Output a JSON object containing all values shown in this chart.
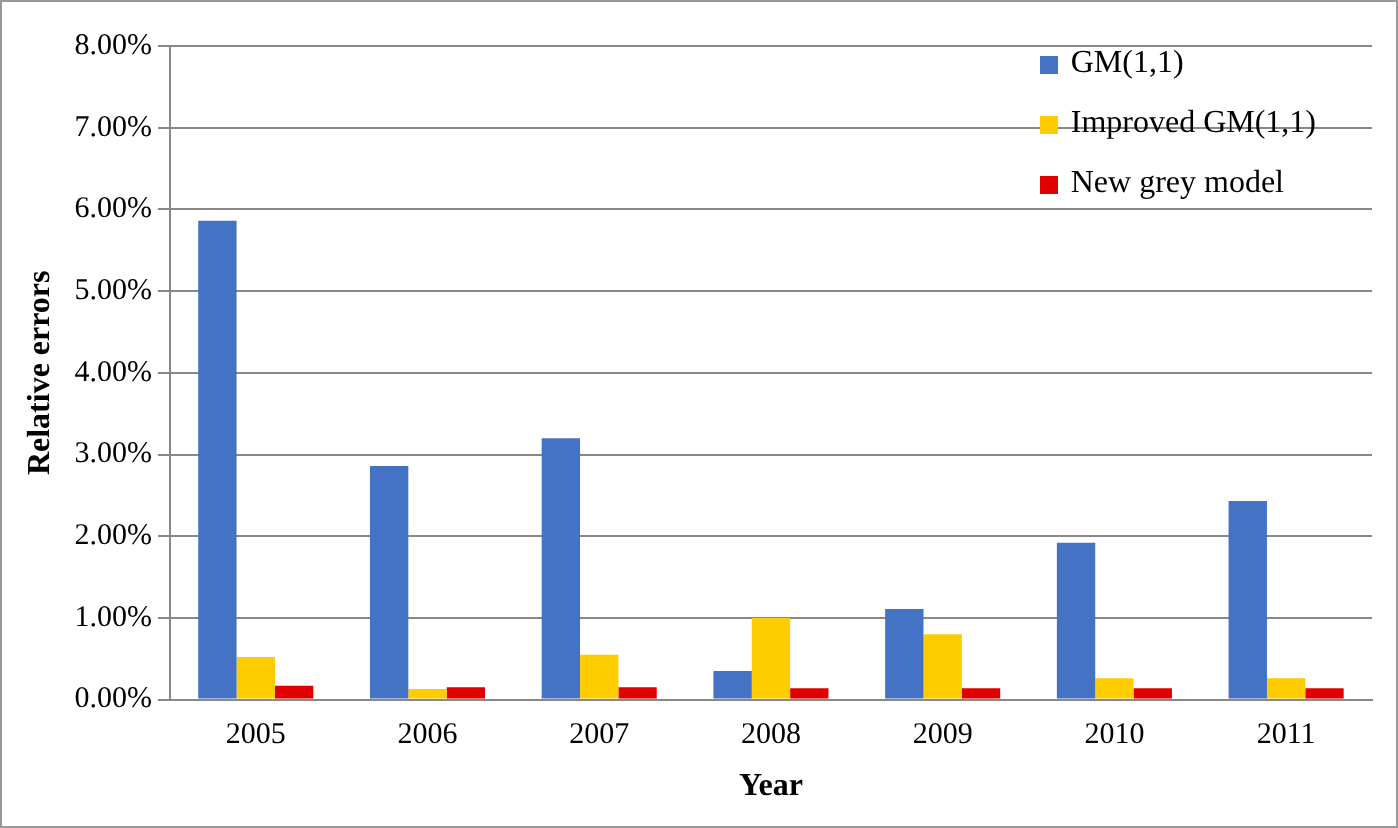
{
  "chart_data": {
    "type": "bar",
    "xlabel": "Year",
    "ylabel": "Relative errors",
    "categories": [
      "2005",
      "2006",
      "2007",
      "2008",
      "2009",
      "2010",
      "2011"
    ],
    "series": [
      {
        "name": "GM(1,1)",
        "color": "#4472c4",
        "values": [
          5.86,
          2.86,
          3.2,
          0.35,
          1.11,
          1.92,
          2.43
        ]
      },
      {
        "name": "Improved GM(1,1)",
        "color": "#ffcc00",
        "values": [
          0.52,
          0.13,
          0.55,
          1.0,
          0.8,
          0.26,
          0.26
        ]
      },
      {
        "name": "New grey model",
        "color": "#e00000",
        "values": [
          0.17,
          0.15,
          0.15,
          0.14,
          0.14,
          0.14,
          0.14
        ]
      }
    ],
    "ylim": [
      0,
      8
    ],
    "yticks": [
      {
        "value": 0,
        "label": "0.00%"
      },
      {
        "value": 1,
        "label": "1.00%"
      },
      {
        "value": 2,
        "label": "2.00%"
      },
      {
        "value": 3,
        "label": "3.00%"
      },
      {
        "value": 4,
        "label": "4.00%"
      },
      {
        "value": 5,
        "label": "5.00%"
      },
      {
        "value": 6,
        "label": "6.00%"
      },
      {
        "value": 7,
        "label": "7.00%"
      },
      {
        "value": 8,
        "label": "8.00%"
      }
    ],
    "grid": "y",
    "legend": "top right"
  }
}
